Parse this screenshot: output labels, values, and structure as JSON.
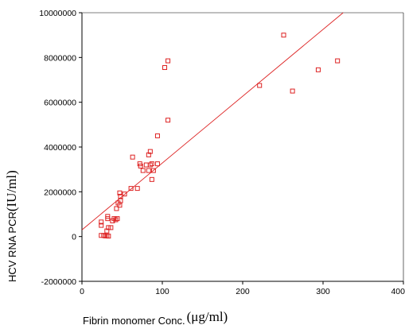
{
  "chart_data": {
    "type": "scatter",
    "xlabel": "Fibrin monomer Conc.",
    "xlabel_unit": "(μg/ml)",
    "ylabel": "HCV RNA PCR",
    "ylabel_unit": "(IU/ml)",
    "xlim": [
      0,
      400
    ],
    "ylim": [
      -2000000,
      10000000
    ],
    "x_ticks": [
      0,
      100,
      200,
      300,
      400
    ],
    "x_tick_labels": [
      "0",
      "100",
      "200",
      "300",
      "400"
    ],
    "y_ticks": [
      -2000000,
      0,
      2000000,
      4000000,
      6000000,
      8000000,
      10000000
    ],
    "y_tick_labels": [
      "-2000000",
      "0",
      "2000000",
      "4000000",
      "6000000",
      "8000000",
      "10000000"
    ],
    "grid": false,
    "point_color": "#dd2222",
    "fit_line_color": "#dd2222",
    "fit_line": {
      "x": [
        0,
        325
      ],
      "y": [
        300000,
        10000000
      ]
    },
    "points": [
      {
        "x": 24,
        "y": 50000
      },
      {
        "x": 27,
        "y": 50000
      },
      {
        "x": 29,
        "y": 30000
      },
      {
        "x": 31,
        "y": 30000
      },
      {
        "x": 33,
        "y": 20000
      },
      {
        "x": 31,
        "y": 250000
      },
      {
        "x": 33,
        "y": 400000
      },
      {
        "x": 36,
        "y": 400000
      },
      {
        "x": 24,
        "y": 500000
      },
      {
        "x": 24,
        "y": 650000
      },
      {
        "x": 32,
        "y": 800000
      },
      {
        "x": 32,
        "y": 900000
      },
      {
        "x": 38,
        "y": 700000
      },
      {
        "x": 40,
        "y": 800000
      },
      {
        "x": 42,
        "y": 750000
      },
      {
        "x": 44,
        "y": 800000
      },
      {
        "x": 43,
        "y": 1250000
      },
      {
        "x": 45,
        "y": 1500000
      },
      {
        "x": 47,
        "y": 1400000
      },
      {
        "x": 48,
        "y": 1600000
      },
      {
        "x": 48,
        "y": 1800000
      },
      {
        "x": 47,
        "y": 1950000
      },
      {
        "x": 53,
        "y": 1900000
      },
      {
        "x": 61,
        "y": 2150000
      },
      {
        "x": 69,
        "y": 2150000
      },
      {
        "x": 63,
        "y": 3550000
      },
      {
        "x": 72,
        "y": 3250000
      },
      {
        "x": 73,
        "y": 3150000
      },
      {
        "x": 76,
        "y": 2950000
      },
      {
        "x": 80,
        "y": 3200000
      },
      {
        "x": 83,
        "y": 2950000
      },
      {
        "x": 85,
        "y": 3200000
      },
      {
        "x": 87,
        "y": 3250000
      },
      {
        "x": 89,
        "y": 2950000
      },
      {
        "x": 94,
        "y": 3250000
      },
      {
        "x": 83,
        "y": 3650000
      },
      {
        "x": 85,
        "y": 3800000
      },
      {
        "x": 87,
        "y": 2550000
      },
      {
        "x": 94,
        "y": 4500000
      },
      {
        "x": 103,
        "y": 7550000
      },
      {
        "x": 107,
        "y": 7850000
      },
      {
        "x": 107,
        "y": 5200000
      },
      {
        "x": 221,
        "y": 6750000
      },
      {
        "x": 251,
        "y": 9000000
      },
      {
        "x": 262,
        "y": 6500000
      },
      {
        "x": 294,
        "y": 7450000
      },
      {
        "x": 318,
        "y": 7850000
      }
    ]
  }
}
